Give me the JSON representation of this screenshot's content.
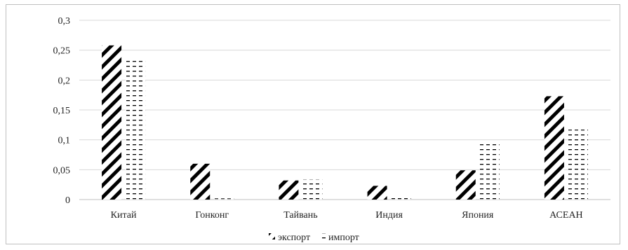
{
  "chart_data": {
    "type": "bar",
    "categories": [
      "Китай",
      "Гонконг",
      "Тайвань",
      "Индия",
      "Япония",
      "АСЕАН"
    ],
    "series": [
      {
        "name": "экспорт",
        "pattern": "diagonal",
        "values": [
          0.258,
          0.06,
          0.032,
          0.023,
          0.049,
          0.173
        ]
      },
      {
        "name": "импорт",
        "pattern": "dashed-horizontal",
        "values": [
          0.232,
          0.002,
          0.034,
          0.008,
          0.098,
          0.117
        ]
      }
    ],
    "ylim": [
      0,
      0.3
    ],
    "yticks": [
      0,
      0.05,
      0.1,
      0.15,
      0.2,
      0.25,
      0.3
    ],
    "ytick_labels": [
      "0",
      "0,05",
      "0,1",
      "0,15",
      "0,2",
      "0,25",
      "0,3"
    ],
    "grid": true,
    "legend_position": "bottom",
    "colors": {
      "bar": "#000000",
      "grid": "#d9d9d9",
      "axis": "#bfbfbf",
      "frame": "#bfbfbf"
    }
  }
}
